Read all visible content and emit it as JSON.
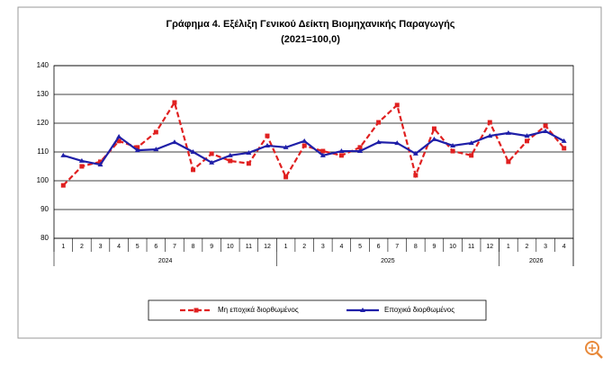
{
  "chart_data": {
    "type": "line",
    "title": "Γράφημα 4. Εξέλιξη Γενικού Δείκτη Βιομηχανικής Παραγωγής",
    "subtitle": "(2021=100,0)",
    "categories": [
      "1",
      "2",
      "3",
      "4",
      "5",
      "6",
      "7",
      "8",
      "9",
      "10",
      "11",
      "12",
      "1",
      "2",
      "3",
      "4",
      "5",
      "6",
      "7",
      "8",
      "9",
      "10",
      "11",
      "12",
      "1",
      "2",
      "3",
      "4"
    ],
    "x_groups": [
      {
        "label": "2024",
        "count": 12
      },
      {
        "label": "2025",
        "count": 12
      },
      {
        "label": "2026",
        "count": 4
      }
    ],
    "series": [
      {
        "name": "Μη εποχικά διορθωμένος",
        "color": "#e02020",
        "dashed": true,
        "marker": "square",
        "values": [
          98.4,
          105.0,
          106.6,
          113.8,
          111.6,
          116.9,
          127.2,
          103.8,
          109.4,
          106.9,
          106.0,
          115.6,
          101.3,
          112.2,
          110.3,
          108.8,
          111.6,
          120.3,
          126.3,
          101.9,
          118.1,
          110.3,
          108.8,
          120.3,
          106.6,
          113.8,
          119.1,
          111.3
        ]
      },
      {
        "name": "Εποχικά διορθωμένος",
        "color": "#1f1fa8",
        "dashed": false,
        "marker": "triangle",
        "values": [
          108.8,
          106.9,
          105.6,
          115.3,
          110.6,
          110.9,
          113.4,
          110.0,
          106.3,
          108.8,
          109.7,
          112.2,
          111.6,
          113.8,
          108.8,
          110.3,
          110.3,
          113.4,
          113.1,
          109.4,
          114.4,
          112.2,
          113.1,
          115.6,
          116.6,
          115.6,
          117.2,
          113.8
        ]
      }
    ],
    "ylim": [
      80,
      140
    ],
    "yticks": [
      80,
      90,
      100,
      110,
      120,
      130,
      140
    ],
    "grid": true,
    "legend": "bottom"
  }
}
